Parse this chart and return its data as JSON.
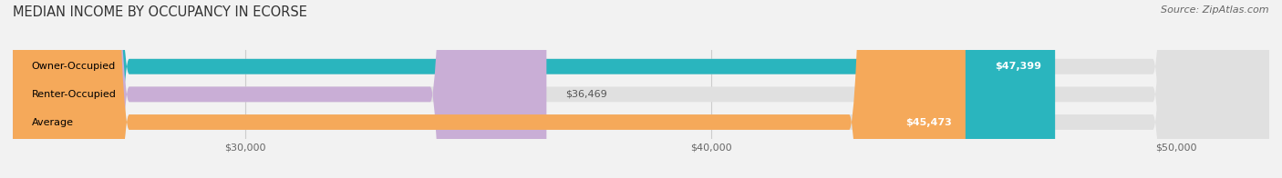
{
  "title": "MEDIAN INCOME BY OCCUPANCY IN ECORSE",
  "source": "Source: ZipAtlas.com",
  "categories": [
    "Owner-Occupied",
    "Renter-Occupied",
    "Average"
  ],
  "values": [
    47399,
    36469,
    45473
  ],
  "bar_colors": [
    "#2ab5be",
    "#c9aed6",
    "#f5a95a"
  ],
  "label_colors": [
    "#ffffff",
    "#777777",
    "#ffffff"
  ],
  "value_labels": [
    "$47,399",
    "$36,469",
    "$45,473"
  ],
  "xlim_min": 25000,
  "xlim_max": 52000,
  "xticks": [
    30000,
    40000,
    50000
  ],
  "xticklabels": [
    "$30,000",
    "$40,000",
    "$50,000"
  ],
  "bar_height": 0.55,
  "background_color": "#f2f2f2",
  "bar_bg_color": "#e0e0e0",
  "title_fontsize": 10.5,
  "source_fontsize": 8,
  "label_fontsize": 8,
  "value_fontsize": 8
}
